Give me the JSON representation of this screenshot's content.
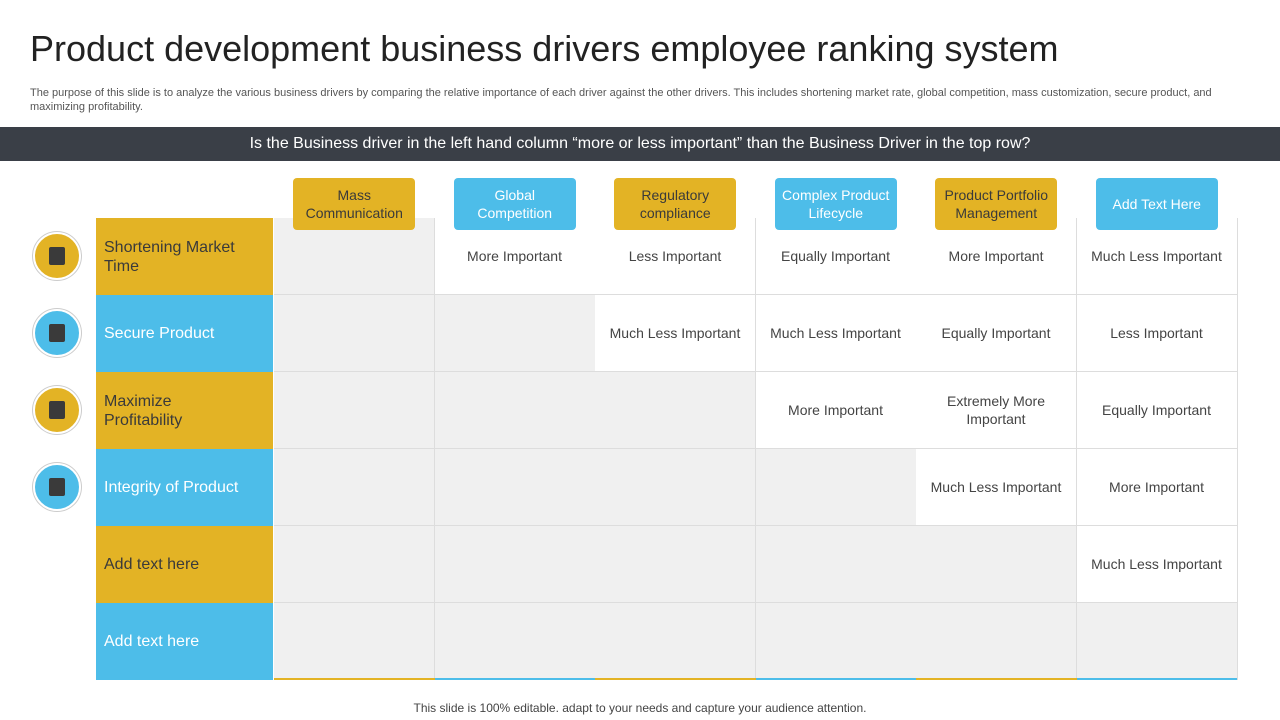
{
  "header": {
    "title": "Product development business drivers employee ranking system",
    "description": "The purpose of this slide is to analyze the various business drivers by comparing the relative importance of each driver against the other drivers. This includes shortening market rate, global competition, mass customization, secure product, and maximizing profitability."
  },
  "banner": "Is the Business driver in the left hand column “more or less important” than the Business Driver in the top row?",
  "table": {
    "columns": [
      "Mass Communication",
      "Global Competition",
      "Regulatory compliance",
      "Complex Product Lifecycle",
      "Product Portfolio Management",
      "Add Text Here"
    ],
    "rows": [
      "Shortening Market Time",
      "Secure Product",
      "Maximize Profitability",
      "Integrity  of Product",
      "Add text here",
      "Add text here"
    ],
    "cells": [
      [
        "More Important",
        "Less Important",
        "Equally Important",
        "More Important",
        "Much Less Important"
      ],
      [
        "Much Less Important",
        "Much Less Important",
        "Equally Important",
        "Less Important"
      ],
      [
        "More Important",
        "Extremely More Important",
        "Equally Important"
      ],
      [
        "Much Less Important",
        "More Important"
      ],
      [
        "Much Less Important"
      ],
      []
    ]
  },
  "footer": "This slide is 100% editable. adapt to your needs and capture your audience attention."
}
